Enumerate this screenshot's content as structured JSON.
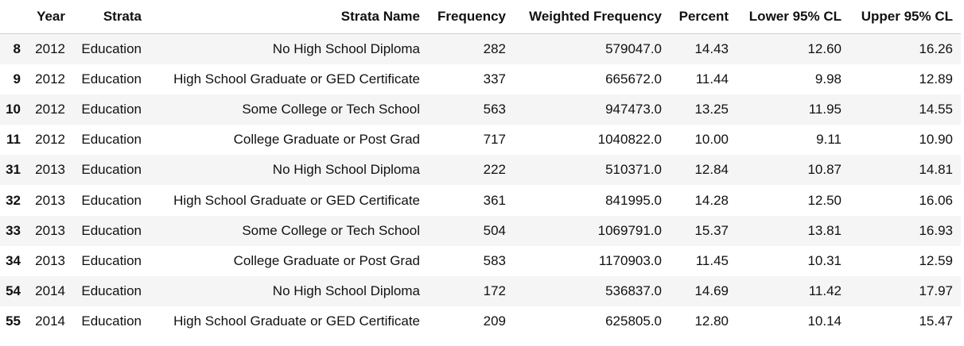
{
  "table": {
    "index_header": "",
    "columns": [
      "Year",
      "Strata",
      "Strata Name",
      "Frequency",
      "Weighted Frequency",
      "Percent",
      "Lower 95% CL",
      "Upper 95% CL"
    ],
    "rows": [
      {
        "index": "8",
        "cells": [
          "2012",
          "Education",
          "No High School Diploma",
          "282",
          "579047.0",
          "14.43",
          "12.60",
          "16.26"
        ]
      },
      {
        "index": "9",
        "cells": [
          "2012",
          "Education",
          "High School Graduate or GED Certificate",
          "337",
          "665672.0",
          "11.44",
          "9.98",
          "12.89"
        ]
      },
      {
        "index": "10",
        "cells": [
          "2012",
          "Education",
          "Some College or Tech School",
          "563",
          "947473.0",
          "13.25",
          "11.95",
          "14.55"
        ]
      },
      {
        "index": "11",
        "cells": [
          "2012",
          "Education",
          "College Graduate or Post Grad",
          "717",
          "1040822.0",
          "10.00",
          "9.11",
          "10.90"
        ]
      },
      {
        "index": "31",
        "cells": [
          "2013",
          "Education",
          "No High School Diploma",
          "222",
          "510371.0",
          "12.84",
          "10.87",
          "14.81"
        ]
      },
      {
        "index": "32",
        "cells": [
          "2013",
          "Education",
          "High School Graduate or GED Certificate",
          "361",
          "841995.0",
          "14.28",
          "12.50",
          "16.06"
        ]
      },
      {
        "index": "33",
        "cells": [
          "2013",
          "Education",
          "Some College or Tech School",
          "504",
          "1069791.0",
          "15.37",
          "13.81",
          "16.93"
        ]
      },
      {
        "index": "34",
        "cells": [
          "2013",
          "Education",
          "College Graduate or Post Grad",
          "583",
          "1170903.0",
          "11.45",
          "10.31",
          "12.59"
        ]
      },
      {
        "index": "54",
        "cells": [
          "2014",
          "Education",
          "No High School Diploma",
          "172",
          "536837.0",
          "14.69",
          "11.42",
          "17.97"
        ]
      },
      {
        "index": "55",
        "cells": [
          "2014",
          "Education",
          "High School Graduate or GED Certificate",
          "209",
          "625805.0",
          "12.80",
          "10.14",
          "15.47"
        ]
      }
    ]
  }
}
